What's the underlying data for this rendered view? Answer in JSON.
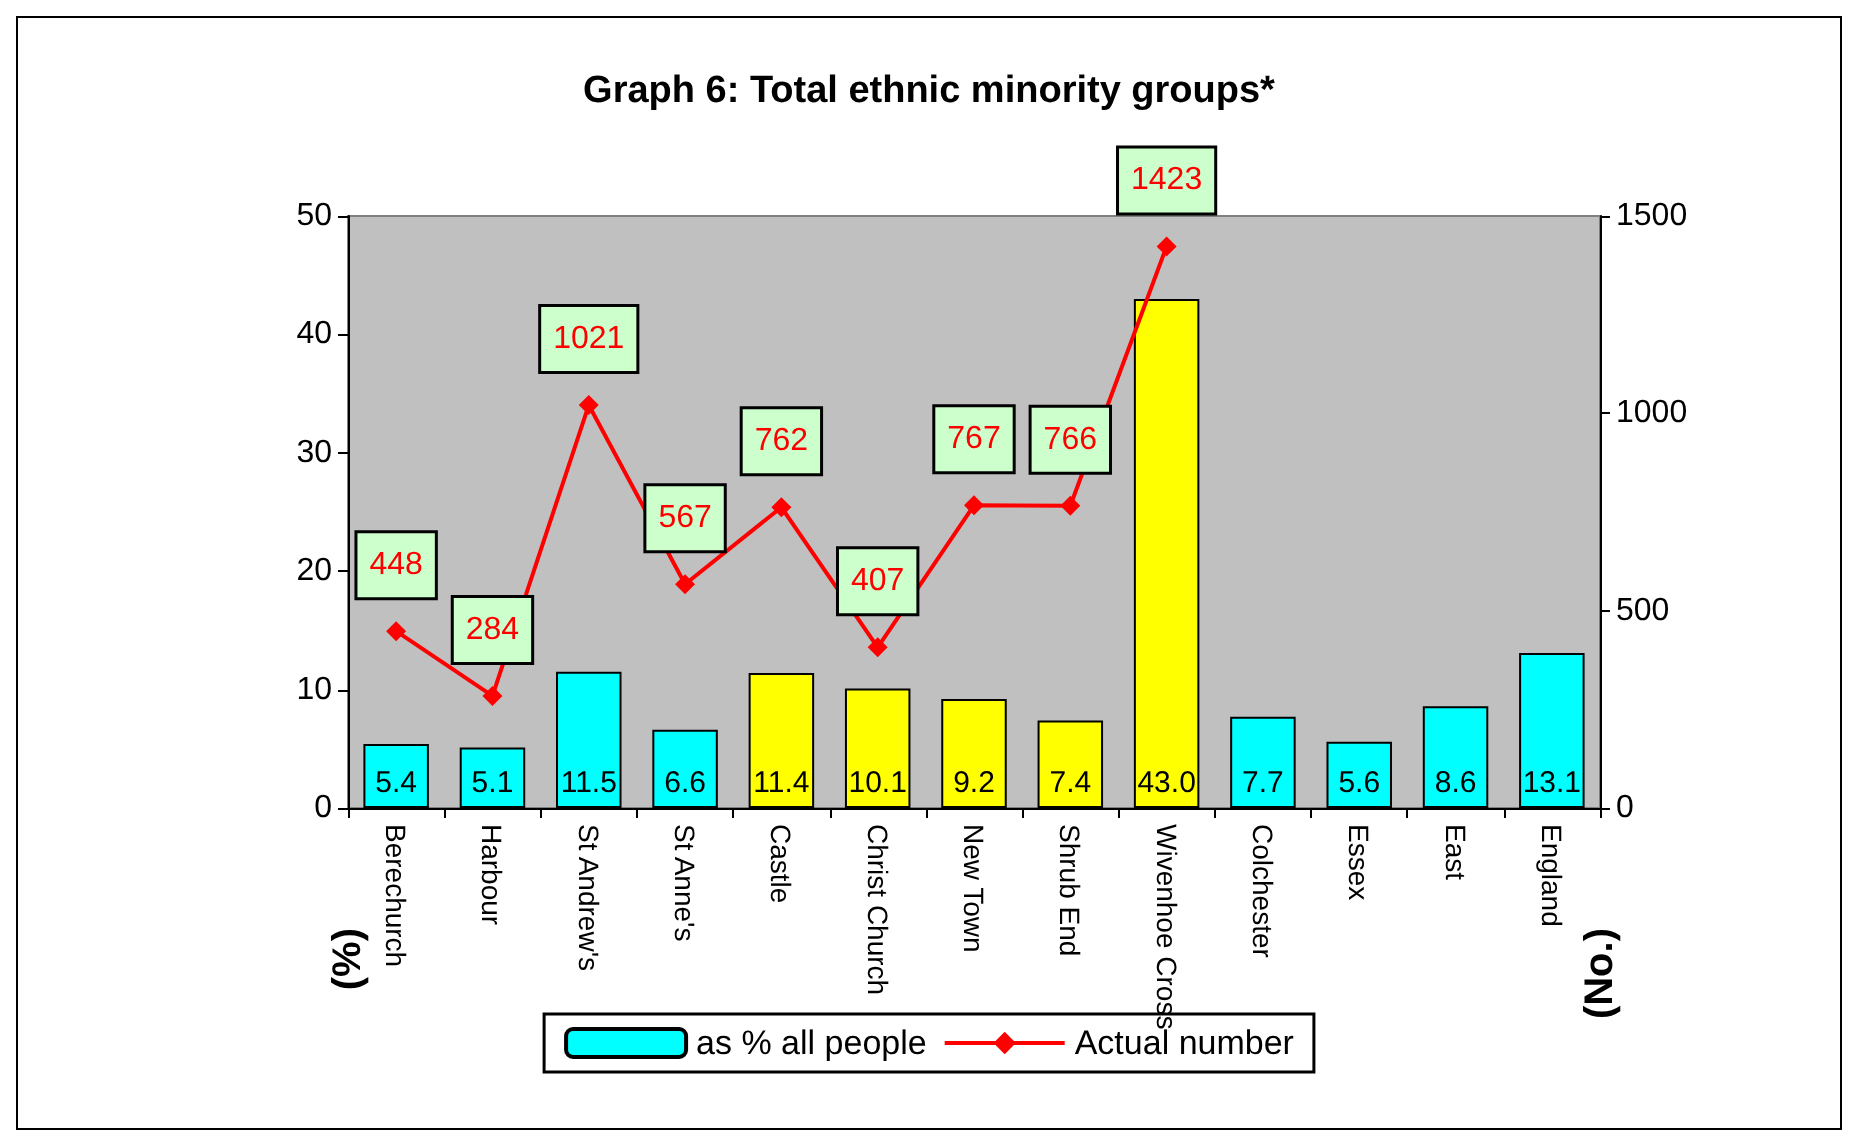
{
  "chart_data": {
    "type": "bar",
    "title": "Graph 6: Total ethnic minority groups*",
    "ylabel": "(%)",
    "y2label": "(No.)",
    "categories": [
      "Berechurch",
      "Harbour",
      "St Andrew's",
      "St Anne's",
      "Castle",
      "Christ Church",
      "New Town",
      "Shrub End",
      "Wivenhoe Cross",
      "Colchester",
      "Essex",
      "East",
      "England"
    ],
    "series": [
      {
        "name": "as % all people",
        "colors": [
          "#00ffff",
          "#00ffff",
          "#00ffff",
          "#00ffff",
          "#ffff00",
          "#ffff00",
          "#ffff00",
          "#ffff00",
          "#ffff00",
          "#00ffff",
          "#00ffff",
          "#00ffff",
          "#00ffff"
        ],
        "values": [
          5.4,
          5.1,
          11.5,
          6.6,
          11.4,
          10.1,
          9.2,
          7.4,
          43.0,
          7.7,
          5.6,
          8.6,
          13.1
        ],
        "value_labels": [
          "5.4",
          "5.1",
          "11.5",
          "6.6",
          "11.4",
          "10.1",
          "9.2",
          "7.4",
          "43.0",
          "7.7",
          "5.6",
          "8.6",
          "13.1"
        ]
      },
      {
        "name": "Actual number",
        "type": "line",
        "axis": "y2",
        "color": "#ff0000",
        "values": [
          448,
          284,
          1021,
          567,
          762,
          407,
          767,
          766,
          1423,
          null,
          null,
          null,
          null
        ]
      }
    ],
    "ylim": [
      0,
      50
    ],
    "yticks": [
      0,
      10,
      20,
      30,
      40,
      50
    ],
    "y2lim": [
      0,
      1500
    ],
    "y2ticks": [
      0,
      500,
      1000,
      1500
    ],
    "data_labels": true,
    "grid": false,
    "legend": "bottom",
    "marker": "diamond",
    "line_style": "solid"
  }
}
